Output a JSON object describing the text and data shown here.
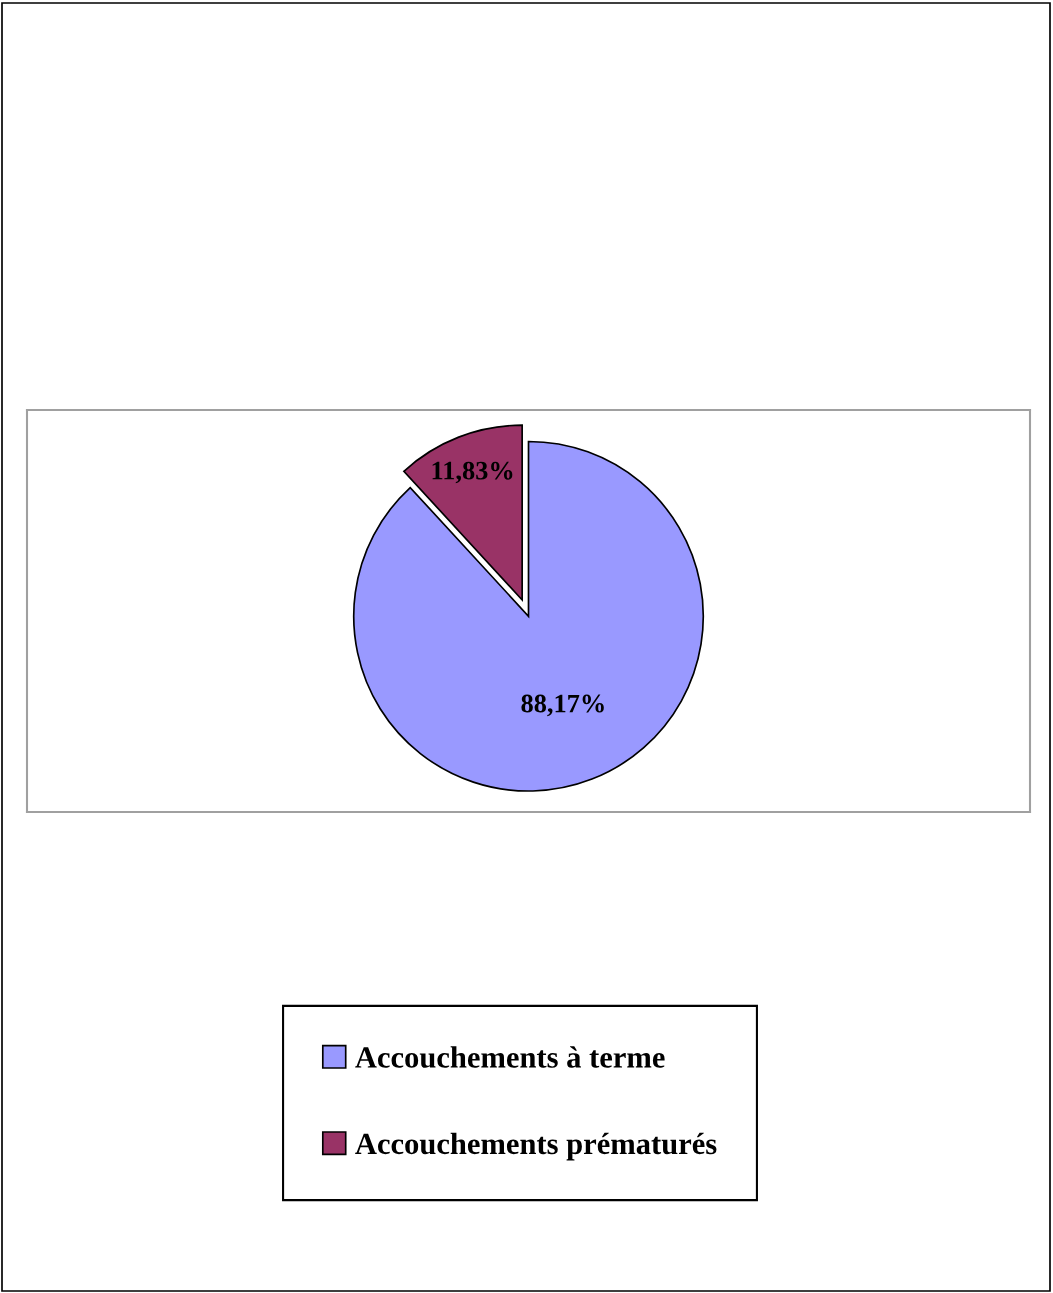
{
  "chart_data": {
    "type": "pie",
    "categories": [
      "Accouchements à terme",
      "Accouchements prématurés"
    ],
    "values": [
      88.17,
      11.83
    ],
    "colors": [
      "#9999ff",
      "#993366"
    ],
    "value_labels": [
      "88,17%",
      "11,83%"
    ],
    "legend": "bottom"
  }
}
